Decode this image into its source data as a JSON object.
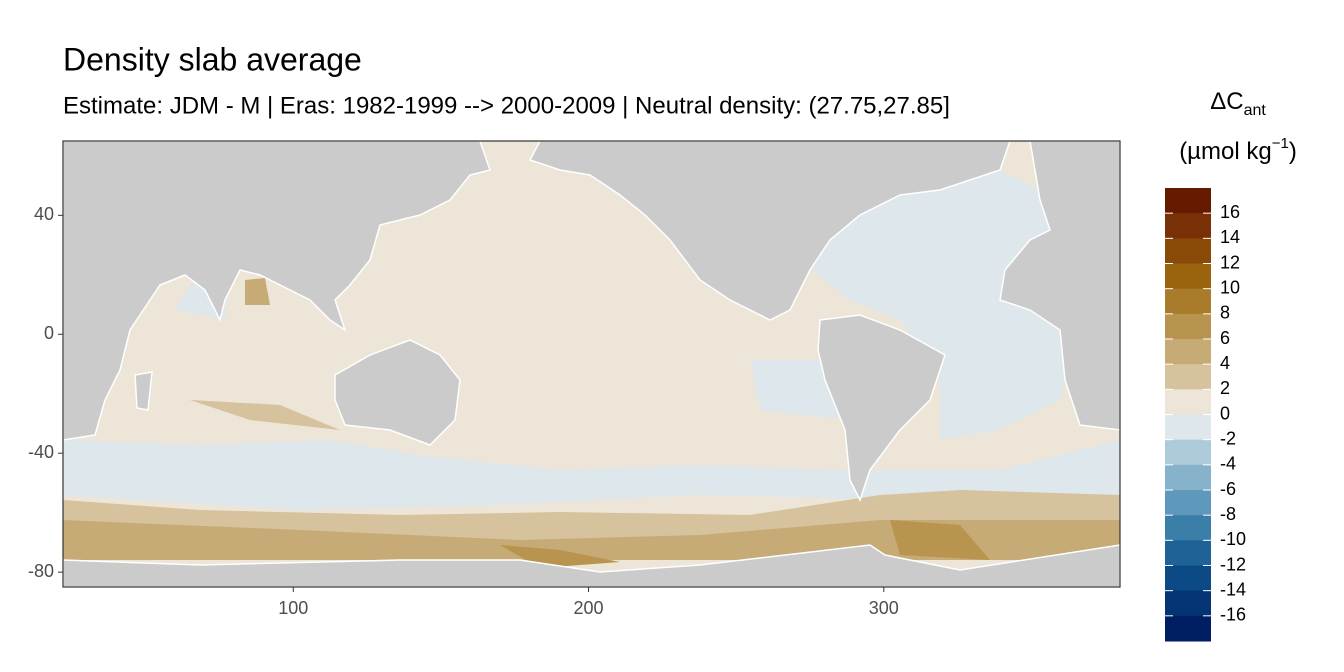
{
  "chart_data": {
    "type": "map",
    "title": "Density slab average",
    "subtitle": "Estimate: JDM - M | Eras: 1982-1999 --> 2000-2009 | Neutral density: (27.75,27.85]",
    "xlim": [
      22,
      380
    ],
    "ylim": [
      -85,
      65
    ],
    "xticks": [
      100,
      200,
      300
    ],
    "yticks": [
      40,
      0,
      -40,
      -80
    ],
    "legend": {
      "title": "ΔC",
      "title_sub": "ant",
      "unit": [
        "(µmol kg",
        "−1",
        ")"
      ],
      "breaks": [
        16,
        14,
        12,
        10,
        8,
        6,
        4,
        2,
        0,
        -2,
        -4,
        -6,
        -8,
        -10,
        -12,
        -14,
        -16
      ],
      "colors": [
        "#661a00",
        "#7a3006",
        "#8a4a08",
        "#9a640f",
        "#a87c2a",
        "#b8944f",
        "#c7ab76",
        "#d6c29d",
        "#ece5d8",
        "#dde7ec",
        "#aecbdc",
        "#86b2cb",
        "#5e98ba",
        "#3b7ea8",
        "#1f6396",
        "#0b4a84",
        "#043474",
        "#001f63"
      ]
    }
  }
}
